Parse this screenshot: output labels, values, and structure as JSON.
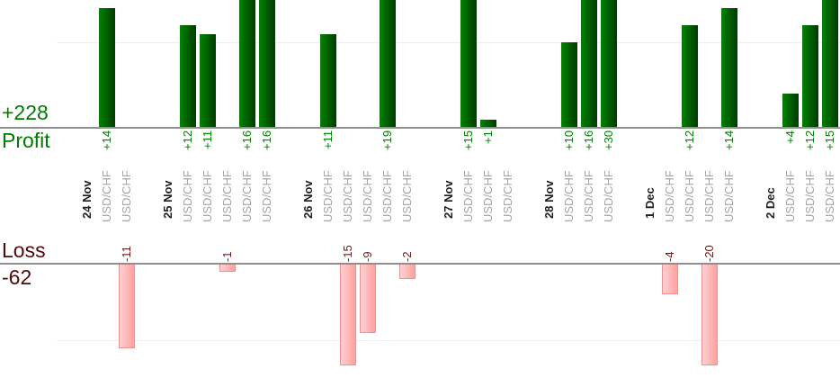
{
  "summary": {
    "profit_label": "Profit",
    "profit_total": "+228",
    "loss_label": "Loss",
    "loss_total": "-62"
  },
  "chart_data": {
    "type": "bar",
    "title": "",
    "orientation": "vertical-columns",
    "xlabel": "",
    "ylabel": "",
    "legend": "none",
    "profit_axis": {
      "zero_line": true,
      "gridline_value": 10,
      "clip_max": 15,
      "total": 228
    },
    "loss_axis": {
      "zero_line": true,
      "gridline_value": -10,
      "clip_min": -13,
      "total": -62
    },
    "groups": [
      {
        "date": "24 Nov",
        "trades": [
          {
            "instrument": "USD/CHF",
            "value": 14,
            "display": "+14"
          },
          {
            "instrument": "USD/CHF",
            "value": -11,
            "display": "-11"
          }
        ]
      },
      {
        "date": "25 Nov",
        "trades": [
          {
            "instrument": "USD/CHF",
            "value": 12,
            "display": "+12"
          },
          {
            "instrument": "USD/CHF",
            "value": 11,
            "display": "+11"
          },
          {
            "instrument": "USD/CHF",
            "value": -1,
            "display": "-1"
          },
          {
            "instrument": "USD/CHF",
            "value": 16,
            "display": "+16"
          },
          {
            "instrument": "USD/CHF",
            "value": 16,
            "display": "+16"
          }
        ]
      },
      {
        "date": "26 Nov",
        "trades": [
          {
            "instrument": "USD/CHF",
            "value": 11,
            "display": "+11"
          },
          {
            "instrument": "USD/CHF",
            "value": -15,
            "display": "-15"
          },
          {
            "instrument": "USD/CHF",
            "value": -9,
            "display": "-9"
          },
          {
            "instrument": "USD/CHF",
            "value": 19,
            "display": "+19"
          },
          {
            "instrument": "USD/CHF",
            "value": -2,
            "display": "-2"
          }
        ]
      },
      {
        "date": "27 Nov",
        "trades": [
          {
            "instrument": "USD/CHF",
            "value": 15,
            "display": "+15"
          },
          {
            "instrument": "USD/CHF",
            "value": 1,
            "display": "+1"
          },
          {
            "instrument": "USD/CHF",
            "value": null,
            "display": ""
          }
        ]
      },
      {
        "date": "28 Nov",
        "trades": [
          {
            "instrument": "USD/CHF",
            "value": 10,
            "display": "+10"
          },
          {
            "instrument": "USD/CHF",
            "value": 16,
            "display": "+16"
          },
          {
            "instrument": "USD/CHF",
            "value": 30,
            "display": "+30"
          }
        ]
      },
      {
        "date": "1 Dec",
        "trades": [
          {
            "instrument": "USD/CHF",
            "value": -4,
            "display": "-4"
          },
          {
            "instrument": "USD/CHF",
            "value": 12,
            "display": "+12"
          },
          {
            "instrument": "USD/CHF",
            "value": -20,
            "display": "-20"
          },
          {
            "instrument": "USD/CHF",
            "value": 14,
            "display": "+14"
          }
        ]
      },
      {
        "date": "2 Dec",
        "trades": [
          {
            "instrument": "USD/CHF",
            "value": 4,
            "display": "+4"
          },
          {
            "instrument": "USD/CHF",
            "value": 12,
            "display": "+12"
          },
          {
            "instrument": "USD/CHF",
            "value": 15,
            "display": "+15"
          }
        ]
      }
    ]
  },
  "colors": {
    "profit-bar-start": "#028202",
    "profit-bar-end": "#013b01",
    "profit-text": "#008000",
    "profit-title": "#007a00",
    "loss-bar-start": "#ffd2d2",
    "loss-bar-end": "#ffa0a0",
    "loss-bar-border": "#ee9393",
    "loss-text": "#6b1a1a",
    "loss-title": "#4f0a0a",
    "date-text": "#1f1f1f",
    "instrument-text": "#a5a5a5",
    "axis-line": "#8f8f8f",
    "gridline": "#eeeeee"
  }
}
